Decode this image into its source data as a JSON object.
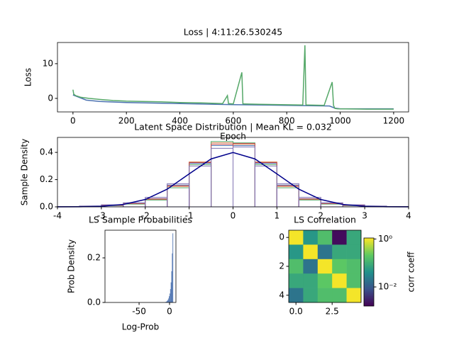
{
  "chart_data": [
    {
      "type": "line",
      "title": "Loss | 4:11:26.530245",
      "xlabel": "Epoch",
      "ylabel": "Loss",
      "xlim": [
        -58,
        1256
      ],
      "ylim": [
        -3.9,
        16.1
      ],
      "xticks": [
        0,
        200,
        400,
        600,
        800,
        1000,
        1200
      ],
      "yticks": [
        0,
        10
      ],
      "series": [
        {
          "color": "#4c72b0",
          "x": [
            0,
            50,
            100,
            200,
            400,
            600,
            800,
            960,
            980,
            1000,
            1200
          ],
          "values": [
            1.0,
            -0.5,
            -0.9,
            -1.2,
            -1.5,
            -1.8,
            -2.0,
            -2.2,
            -2.8,
            -3.0,
            -3.0
          ]
        },
        {
          "color": "#55a868",
          "x": [
            0,
            3,
            10,
            30,
            60,
            100,
            150,
            200,
            260,
            330,
            400,
            480,
            560,
            578,
            582,
            600,
            632,
            636,
            640,
            700,
            780,
            860,
            868,
            872,
            880,
            940,
            970,
            975,
            980,
            990,
            1100,
            1200
          ],
          "values": [
            2.5,
            1.2,
            0.8,
            0.3,
            0.0,
            -0.3,
            -0.6,
            -0.8,
            -0.9,
            -1.0,
            -1.2,
            -1.3,
            -1.5,
            0.8,
            -1.5,
            -1.6,
            7.5,
            -1.6,
            -1.6,
            -1.7,
            -1.8,
            -1.9,
            15.3,
            -1.9,
            -1.9,
            -2.0,
            4.7,
            -2.0,
            -2.9,
            -3.0,
            -3.1,
            -3.1
          ]
        }
      ]
    },
    {
      "type": "histogram",
      "histtype": "step",
      "title": "Latent Space Distribution | Mean KL = 0.032",
      "ylabel": "Sample Density",
      "xlim": [
        -4,
        4
      ],
      "ylim": [
        0,
        0.51
      ],
      "xticks": [
        -4,
        -3,
        -2,
        -1,
        0,
        1,
        2,
        3,
        4
      ],
      "yticks": [
        {
          "value": 0,
          "label": "0.0"
        },
        0.2,
        0.4
      ],
      "bins": [
        -4,
        -3.5,
        -3,
        -2.5,
        -2,
        -1.5,
        -1,
        -0.5,
        0,
        0.5,
        1,
        1.5,
        2,
        2.5,
        3,
        3.5,
        4
      ],
      "series": [
        {
          "color": "#4c72b0",
          "values": [
            0.001,
            0.004,
            0.012,
            0.025,
            0.06,
            0.16,
            0.32,
            0.45,
            0.45,
            0.32,
            0.16,
            0.06,
            0.025,
            0.012,
            0.004,
            0.001
          ]
        },
        {
          "color": "#dd8452",
          "values": [
            0.001,
            0.003,
            0.01,
            0.022,
            0.055,
            0.15,
            0.33,
            0.47,
            0.46,
            0.33,
            0.15,
            0.055,
            0.022,
            0.01,
            0.003,
            0.001
          ]
        },
        {
          "color": "#55a868",
          "values": [
            0.001,
            0.003,
            0.009,
            0.02,
            0.05,
            0.14,
            0.31,
            0.48,
            0.47,
            0.31,
            0.14,
            0.05,
            0.02,
            0.009,
            0.003,
            0.001
          ]
        },
        {
          "color": "#c44e52",
          "values": [
            0.001,
            0.004,
            0.011,
            0.024,
            0.058,
            0.155,
            0.325,
            0.46,
            0.465,
            0.325,
            0.155,
            0.058,
            0.024,
            0.011,
            0.004,
            0.001
          ]
        },
        {
          "color": "#8172b3",
          "values": [
            0.002,
            0.006,
            0.015,
            0.03,
            0.07,
            0.17,
            0.3,
            0.43,
            0.44,
            0.3,
            0.17,
            0.07,
            0.03,
            0.015,
            0.006,
            0.002
          ]
        }
      ],
      "curve": {
        "color": "#00008b",
        "x": [
          -4,
          -3.5,
          -3,
          -2.5,
          -2,
          -1.5,
          -1,
          -0.5,
          0,
          0.5,
          1,
          1.5,
          2,
          2.5,
          3,
          3.5,
          4
        ],
        "values": [
          0.0001,
          0.0009,
          0.0044,
          0.0175,
          0.054,
          0.1295,
          0.242,
          0.352,
          0.399,
          0.352,
          0.242,
          0.1295,
          0.054,
          0.0175,
          0.0044,
          0.0009,
          0.0001
        ]
      }
    },
    {
      "type": "histogram",
      "histtype": "bar",
      "title": "LS Sample Probabilities",
      "xlabel": "Log-Prob",
      "ylabel": "Prob Density",
      "xlim": [
        -106,
        10.5
      ],
      "ylim": [
        0,
        0.324
      ],
      "xticks": [
        -50,
        0
      ],
      "yticks": [
        {
          "value": 0,
          "label": "0.0"
        },
        0.2
      ],
      "bins": [
        -8,
        -7,
        -6,
        -5,
        -4,
        -3,
        -2,
        -1,
        0,
        1,
        2,
        3,
        4,
        5,
        6
      ],
      "series": [
        {
          "color": "#4c72b0",
          "values": [
            0.001,
            0.002,
            0.003,
            0.005,
            0.008,
            0.012,
            0.018,
            0.028,
            0.04,
            0.06,
            0.09,
            0.14,
            0.22,
            0.31
          ]
        }
      ]
    },
    {
      "type": "heatmap",
      "title": "LS Correlation",
      "xlim": [
        -0.5,
        4.5
      ],
      "ylim": [
        4.5,
        -0.5
      ],
      "xticks": [
        {
          "value": 0,
          "label": "0.0"
        },
        2.5
      ],
      "yticks": [
        0,
        2,
        4
      ],
      "matrix": [
        [
          1,
          0.05,
          0.15,
          0.002,
          0.08
        ],
        [
          0.05,
          1,
          0.02,
          0.08,
          0.08
        ],
        [
          0.15,
          0.02,
          1,
          0.2,
          0.15
        ],
        [
          0.08,
          0.08,
          0.2,
          1,
          0.15
        ],
        [
          0.02,
          0.08,
          0.15,
          0.15,
          1
        ]
      ],
      "colorbar": {
        "label": "corr coeff",
        "scale": "log",
        "lim": [
          0.0016,
          1.1
        ],
        "ticks": [
          {
            "value": 1,
            "label": "10⁰"
          },
          {
            "value": 0.01,
            "label": "10⁻²"
          }
        ]
      }
    }
  ]
}
